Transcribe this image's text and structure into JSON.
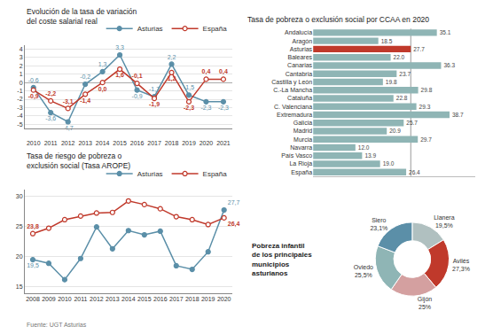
{
  "chart_data": [
    {
      "type": "line",
      "title": "Evolución de la tasa de variación del coste salarial real",
      "x": [
        2010,
        2011,
        2012,
        2013,
        2014,
        2015,
        2016,
        2017,
        2018,
        2019,
        2020,
        2021
      ],
      "xlim": [
        2009.5,
        2021.5
      ],
      "xticks": [
        2010,
        2011,
        2012,
        2013,
        2014,
        2015,
        2016,
        2017,
        2018,
        2019,
        2020,
        2021
      ],
      "ylim": [
        -5.5,
        4.5
      ],
      "yticks": [
        -5,
        -4,
        -3,
        -2,
        -1,
        0,
        1,
        2,
        3,
        4
      ],
      "grid": true,
      "legend": "upper right",
      "data_labels": true,
      "series": [
        {
          "name": "Asturias",
          "color": "#5b8fa8",
          "values": [
            -0.6,
            -3.6,
            -4.7,
            -0.2,
            1.3,
            3.3,
            -0.9,
            -1.7,
            2.2,
            -1.5,
            -2.3,
            -2.3
          ],
          "value_labels": [
            "-0,6",
            "-3,6",
            "-4,7",
            "-0,2",
            "1,3",
            "3,3",
            "-0,9",
            "-1,7",
            "2,2",
            "-1,5",
            "-2,3",
            "-2,3"
          ]
        },
        {
          "name": "España",
          "color": "#c0392b",
          "values": [
            -0.9,
            -2.2,
            -3.1,
            -1.4,
            0.0,
            1.6,
            -0.1,
            -1.9,
            1.2,
            -2.3,
            0.4,
            0.4
          ],
          "value_labels": [
            "-0,9",
            "-2,2",
            "-3,1",
            "-1,4",
            "0,0",
            "1,6",
            "-0,1",
            "-1,9",
            "1,2",
            "-2,3",
            "0,4",
            "0,4"
          ]
        }
      ]
    },
    {
      "type": "line",
      "title": "Tasa de riesgo de pobreza o exclusión social (Tasa AROPE)",
      "x": [
        2008,
        2009,
        2010,
        2011,
        2012,
        2013,
        2014,
        2015,
        2016,
        2017,
        2018,
        2019,
        2020
      ],
      "xlim": [
        2007.5,
        2020.5
      ],
      "xticks": [
        2008,
        2009,
        2010,
        2011,
        2012,
        2013,
        2014,
        2015,
        2016,
        2017,
        2018,
        2019,
        2020
      ],
      "ylim": [
        14,
        31
      ],
      "yticks": [
        15,
        20,
        25,
        30
      ],
      "grid": true,
      "legend": "upper right",
      "data_labels": true,
      "annotations": [
        "Fuente: UGT Asturias"
      ],
      "series": [
        {
          "name": "Asturias",
          "color": "#5b8fa8",
          "values": [
            19.5,
            18.9,
            16.2,
            19.7,
            24.9,
            21.3,
            24.3,
            23.6,
            24.2,
            18.5,
            17.9,
            20.8,
            27.7
          ],
          "value_labels": [
            "19,5",
            null,
            null,
            null,
            null,
            null,
            null,
            null,
            null,
            null,
            null,
            null,
            "27,7"
          ]
        },
        {
          "name": "España",
          "color": "#c0392b",
          "values": [
            23.8,
            24.7,
            26.1,
            26.7,
            27.2,
            27.3,
            29.2,
            28.6,
            27.9,
            26.6,
            26.1,
            25.3,
            26.4
          ],
          "value_labels": [
            "23,8",
            null,
            null,
            null,
            null,
            null,
            null,
            null,
            null,
            null,
            null,
            null,
            "26,4"
          ]
        }
      ]
    },
    {
      "type": "bar",
      "orientation": "horizontal",
      "title": "Tasa de pobreza o exclusión social por CCAA en 2020",
      "categories": [
        "Andalucía",
        "Aragón",
        "Asturias",
        "Baleares",
        "Canarias",
        "Cantabria",
        "Castilla y León",
        "C.-La Mancha",
        "Cataluña",
        "C. Valenciana",
        "Extremadura",
        "Galicia",
        "Madrid",
        "Murcia",
        "Navarra",
        "País Vasco",
        "La Rioja",
        "España"
      ],
      "values": [
        35.1,
        18.5,
        27.7,
        22.0,
        36.3,
        23.7,
        19.8,
        29.8,
        22.8,
        29.3,
        38.7,
        25.7,
        20.9,
        29.7,
        12.0,
        13.9,
        19.0,
        26.4
      ],
      "value_labels": [
        "35.1",
        "18.5",
        "27.7",
        "22.0",
        "36.3",
        "23.7",
        "19.8",
        "29.8",
        "22.8",
        "29.3",
        "38.7",
        "25.7",
        "20.9",
        "29.7",
        "12.0",
        "13.9",
        "19.0",
        "26.4"
      ],
      "colors": [
        "#8fb5b5",
        "#8fb5b5",
        "#c0392b",
        "#8fb5b5",
        "#8fb5b5",
        "#8fb5b5",
        "#8fb5b5",
        "#8fb5b5",
        "#8fb5b5",
        "#8fb5b5",
        "#8fb5b5",
        "#8fb5b5",
        "#8fb5b5",
        "#8fb5b5",
        "#8fb5b5",
        "#8fb5b5",
        "#8fb5b5",
        "#8fb5b5"
      ],
      "xlim": [
        0,
        46
      ],
      "tick_labels": "y",
      "data_labels": true,
      "reference_line": 27.7
    },
    {
      "type": "pie",
      "title": "Pobreza infantil\nde los principales\nmunicipios\nasturianos",
      "categories": [
        "Llanera",
        "Avilés",
        "Gijón",
        "Oviedo",
        "Siero"
      ],
      "values": [
        19.5,
        27.3,
        25.0,
        25.5,
        23.1
      ],
      "value_labels": [
        "19,5%",
        "27,3%",
        "25%",
        "25,5%",
        "23,1%"
      ],
      "colors": [
        "#b0c0c0",
        "#c0392b",
        "#d4a0a0",
        "#8fb5b5",
        "#5b8fa8"
      ],
      "data_labels": true
    }
  ]
}
